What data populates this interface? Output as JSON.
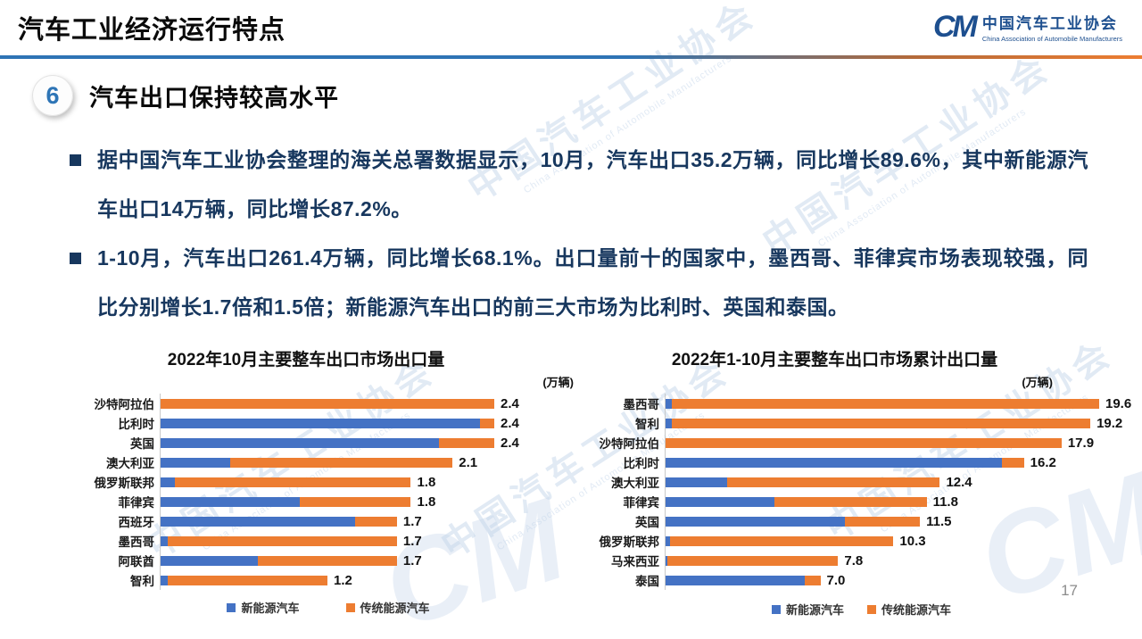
{
  "header": {
    "title": "汽车工业经济运行特点",
    "logo": {
      "mark": "CM",
      "name_cn": "中国汽车工业协会",
      "name_en": "China Association of Automobile Manufacturers"
    }
  },
  "section": {
    "number": "6",
    "heading": "汽车出口保持较高水平"
  },
  "bullets": [
    {
      "text": "据中国汽车工业协会整理的海关总署数据显示，10月，汽车出口35.2万辆，同比增长89.6%，其中新能源汽车出口14万辆，同比增长87.2%。"
    },
    {
      "text": "1-10月，汽车出口261.4万辆，同比增长68.1%。出口量前十的国家中，墨西哥、菲律宾市场表现较强，同比分别增长1.7倍和1.5倍；新能源汽车出口的前三大市场为比利时、英国和泰国。"
    }
  ],
  "chart_data": [
    {
      "type": "bar",
      "orientation": "horizontal",
      "stacked": true,
      "title": "2022年10月主要整车出口市场出口量",
      "unit": "(万辆)",
      "categories": [
        "沙特阿拉伯",
        "比利时",
        "英国",
        "澳大利亚",
        "俄罗斯联邦",
        "菲律宾",
        "西班牙",
        "墨西哥",
        "阿联酋",
        "智利"
      ],
      "series": [
        {
          "name": "新能源汽车",
          "color": "#4472C4",
          "values": [
            0,
            2.3,
            2.0,
            0.5,
            0.1,
            1.0,
            1.4,
            0.05,
            0.7,
            0.05
          ]
        },
        {
          "name": "传统能源汽车",
          "color": "#ED7D31",
          "values": [
            2.4,
            0.1,
            0.4,
            1.6,
            1.7,
            0.8,
            0.3,
            1.65,
            1.0,
            1.15
          ]
        }
      ],
      "totals": [
        2.4,
        2.4,
        2.4,
        2.1,
        1.8,
        1.8,
        1.7,
        1.7,
        1.7,
        1.2
      ],
      "data_labels": [
        "2.4",
        "2.4",
        "2.4",
        "2.1",
        "1.8",
        "1.8",
        "1.7",
        "1.7",
        "1.7",
        "1.2"
      ],
      "xlim": [
        0,
        2.4
      ],
      "grid": false,
      "legend_position": "bottom"
    },
    {
      "type": "bar",
      "orientation": "horizontal",
      "stacked": true,
      "title": "2022年1-10月主要整车出口市场累计出口量",
      "unit": "(万辆)",
      "categories": [
        "墨西哥",
        "智利",
        "沙特阿拉伯",
        "比利时",
        "澳大利亚",
        "菲律宾",
        "英国",
        "俄罗斯联邦",
        "马来西亚",
        "泰国"
      ],
      "series": [
        {
          "name": "新能源汽车",
          "color": "#4472C4",
          "values": [
            0.3,
            0.3,
            0,
            15.2,
            2.8,
            4.9,
            8.1,
            0.2,
            0.1,
            6.3
          ]
        },
        {
          "name": "传统能源汽车",
          "color": "#ED7D31",
          "values": [
            19.3,
            18.9,
            17.9,
            1.0,
            9.6,
            6.9,
            3.4,
            10.1,
            7.7,
            0.7
          ]
        }
      ],
      "totals": [
        19.6,
        19.2,
        17.9,
        16.2,
        12.4,
        11.8,
        11.5,
        10.3,
        7.8,
        7.0
      ],
      "data_labels": [
        "19.6",
        "19.2",
        "17.9",
        "16.2",
        "12.4",
        "11.8",
        "11.5",
        "10.3",
        "7.8",
        "7.0"
      ],
      "xlim": [
        0,
        19.6
      ],
      "grid": false,
      "legend_position": "bottom"
    }
  ],
  "watermark": {
    "cn": "中国汽车工业协会",
    "en": "China Association of Automobile Manufacturers",
    "mark": "CM"
  },
  "page_number": "17",
  "colors": {
    "nev_blue": "#4472C4",
    "trad_orange": "#ED7D31",
    "text_navy": "#17375E",
    "rule_blue": "#2E74B5",
    "rule_orange": "#ED7D31"
  }
}
